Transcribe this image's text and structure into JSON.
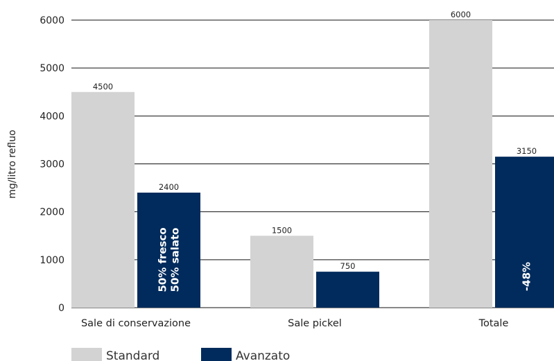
{
  "chart_data": {
    "type": "bar",
    "categories": [
      "Sale di conservazione",
      "Sale pickel",
      "Totale"
    ],
    "series": [
      {
        "name": "Standard",
        "values": [
          4500,
          1500,
          6000
        ],
        "color": "#d3d3d3"
      },
      {
        "name": "Avanzato",
        "values": [
          2400,
          750,
          3150
        ],
        "color": "#002b5c"
      }
    ],
    "ylabel": "mg/litro refluo",
    "ylim": [
      0,
      6000
    ],
    "yticks": [
      0,
      1000,
      2000,
      3000,
      4000,
      5000,
      6000
    ],
    "grid": true,
    "legend": "bottom-left",
    "annotations": [
      {
        "category": 0,
        "series": 1,
        "lines": [
          "50% fresco",
          "50% salato"
        ]
      },
      {
        "category": 2,
        "series": 1,
        "lines": [
          "-48%"
        ]
      }
    ]
  }
}
